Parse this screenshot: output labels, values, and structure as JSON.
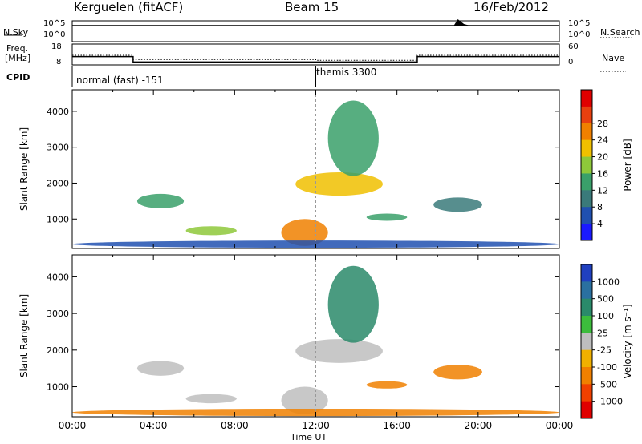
{
  "header": {
    "station": "Kerguelen (fitACF)",
    "beam": "Beam 15",
    "date": "16/Feb/2012"
  },
  "nsky_panel": {
    "left_label": "N.Sky",
    "right_label": "N.Search",
    "left_ticks": [
      "10^5",
      "10^0"
    ],
    "right_ticks": [
      "10^5",
      "10^0"
    ]
  },
  "freq_panel": {
    "left_label_line1": "Freq.",
    "left_label_line2": "[MHz]",
    "right_label": "Nave",
    "left_ticks": [
      "18",
      "8"
    ],
    "right_ticks": [
      "60",
      "0"
    ]
  },
  "cpid": {
    "label": "CPID",
    "modes": [
      "normal (fast) -151",
      "themis 3300"
    ]
  },
  "x_axis": {
    "title": "Time UT",
    "ticks": [
      "00:00",
      "04:00",
      "08:00",
      "12:00",
      "16:00",
      "20:00",
      "00:00"
    ]
  },
  "chart_data": [
    {
      "type": "heatmap",
      "name": "power",
      "ylabel": "Slant Range [km]",
      "xlabel": "Time UT",
      "xlim": [
        0,
        24
      ],
      "ylim": [
        180,
        4600
      ],
      "yticks": [
        "1000",
        "2000",
        "3000",
        "4000"
      ],
      "colorbar": {
        "label": "Power [dB]",
        "ticks": [
          "4",
          "8",
          "12",
          "16",
          "20",
          "24",
          "28"
        ],
        "colors": [
          "#1a1aff",
          "#2050b0",
          "#3a7a7a",
          "#3aa06a",
          "#8ec83a",
          "#f0c000",
          "#f08000",
          "#e84010",
          "#e00000"
        ]
      },
      "echo_regions": [
        {
          "t0": 3.2,
          "t1": 5.5,
          "r0": 1300,
          "r1": 1700,
          "level": 12
        },
        {
          "t0": 5.6,
          "t1": 8.1,
          "r0": 550,
          "r1": 800,
          "level": 16
        },
        {
          "t0": 10.3,
          "t1": 12.6,
          "r0": 250,
          "r1": 1000,
          "level": 24
        },
        {
          "t0": 11.0,
          "t1": 15.3,
          "r0": 1650,
          "r1": 2300,
          "level": 20
        },
        {
          "t0": 12.6,
          "t1": 15.1,
          "r0": 2200,
          "r1": 4300,
          "level": 12
        },
        {
          "t0": 14.5,
          "t1": 16.5,
          "r0": 950,
          "r1": 1150,
          "level": 12
        },
        {
          "t0": 17.8,
          "t1": 20.2,
          "r0": 1200,
          "r1": 1600,
          "level": 8
        },
        {
          "t0": 0.0,
          "t1": 24.0,
          "r0": 200,
          "r1": 400,
          "level": 4
        }
      ]
    },
    {
      "type": "heatmap",
      "name": "velocity",
      "ylabel": "Slant Range [km]",
      "xlabel": "Time UT",
      "xlim": [
        0,
        24
      ],
      "ylim": [
        180,
        4600
      ],
      "yticks": [
        "1000",
        "2000",
        "3000",
        "4000"
      ],
      "colorbar": {
        "label": "Velocity [m s⁻¹]",
        "ticks": [
          "1000",
          "500",
          "100",
          "25",
          "-25",
          "-100",
          "-500",
          "-1000"
        ],
        "colors": [
          "#2040c0",
          "#2a70a0",
          "#2a8a6a",
          "#3cbc3c",
          "#bebebe",
          "#f0b000",
          "#f08000",
          "#f04000",
          "#e00000"
        ]
      },
      "echo_regions": [
        {
          "t0": 3.2,
          "t1": 5.5,
          "r0": 1300,
          "r1": 1700,
          "level": 0
        },
        {
          "t0": 5.6,
          "t1": 8.1,
          "r0": 550,
          "r1": 800,
          "level": 0
        },
        {
          "t0": 10.3,
          "t1": 12.6,
          "r0": 250,
          "r1": 1000,
          "level": 0
        },
        {
          "t0": 11.0,
          "t1": 15.3,
          "r0": 1650,
          "r1": 2300,
          "level": 0
        },
        {
          "t0": 12.6,
          "t1": 15.1,
          "r0": 2200,
          "r1": 4300,
          "level": 100
        },
        {
          "t0": 14.5,
          "t1": 16.5,
          "r0": 950,
          "r1": 1150,
          "level": -100
        },
        {
          "t0": 17.8,
          "t1": 20.2,
          "r0": 1200,
          "r1": 1600,
          "level": -100
        },
        {
          "t0": 0.0,
          "t1": 24.0,
          "r0": 200,
          "r1": 400,
          "level": -100
        }
      ]
    }
  ]
}
